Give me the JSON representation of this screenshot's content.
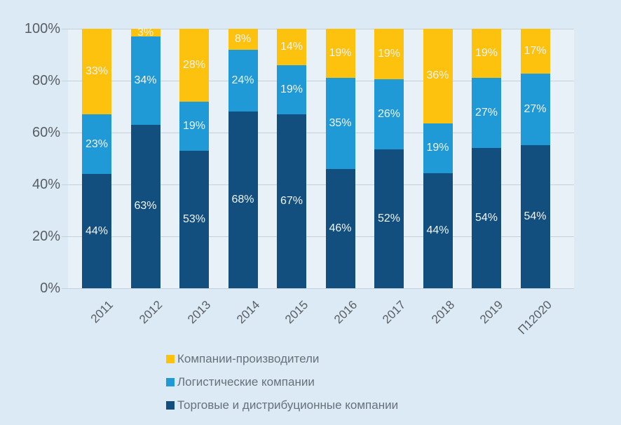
{
  "chart_data": {
    "type": "bar",
    "stacked": true,
    "orientation": "vertical",
    "title": "",
    "xlabel": "",
    "ylabel": "",
    "ylim": [
      0,
      100
    ],
    "grid": true,
    "legend_position": "bottom",
    "value_suffix": "%",
    "categories": [
      "2011",
      "2012",
      "2013",
      "2014",
      "2015",
      "2016",
      "2017",
      "2018",
      "2019",
      "П12020"
    ],
    "series": [
      {
        "name": "Торговые и дистрибуционные компании",
        "color": "#124F7E",
        "values": [
          44,
          63,
          53,
          68,
          67,
          46,
          52,
          44,
          54,
          54
        ]
      },
      {
        "name": "Логистические компании",
        "color": "#1F9AD6",
        "values": [
          23,
          34,
          19,
          24,
          19,
          35,
          26,
          19,
          27,
          27
        ]
      },
      {
        "name": "Компании-производители",
        "color": "#FDC20E",
        "values": [
          33,
          3,
          28,
          8,
          14,
          19,
          19,
          36,
          19,
          17
        ]
      }
    ],
    "legend_series_order": [
      2,
      1,
      0
    ],
    "y_ticks": [
      "0%",
      "20%",
      "40%",
      "60%",
      "80%",
      "100%"
    ]
  },
  "colors": {
    "page_bg": "#DBEAF4",
    "plot_bg": "#E9F1F8",
    "grid": "#C6D0D8",
    "axis_text": "#595E64",
    "data_label_text": "#F2F6F9",
    "legend_text": "#68717B"
  }
}
